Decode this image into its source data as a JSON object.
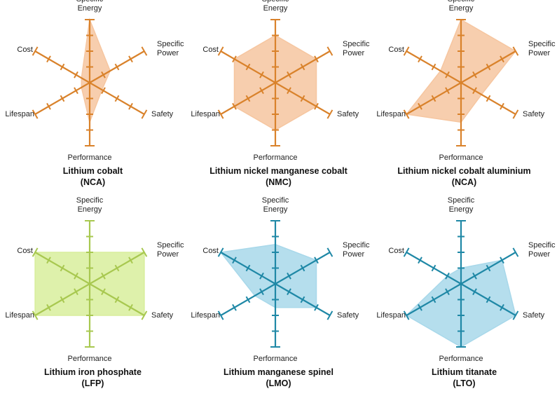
{
  "axes": [
    {
      "key": "energy",
      "label_lines": [
        "Specific",
        "Energy"
      ]
    },
    {
      "key": "power",
      "label_lines": [
        "Specific",
        "Power"
      ]
    },
    {
      "key": "safety",
      "label_lines": [
        "Safety"
      ]
    },
    {
      "key": "performance",
      "label_lines": [
        "Performance"
      ]
    },
    {
      "key": "lifespan",
      "label_lines": [
        "Lifespan"
      ]
    },
    {
      "key": "cost",
      "label_lines": [
        "Cost"
      ]
    }
  ],
  "chart_data": [
    {
      "type": "radar",
      "name_line1": "Lithium cobalt",
      "name_line2": "(NCA)",
      "axis_color": "#d9822b",
      "fill_color": "#f6c6a0",
      "scale_max": 4,
      "values": {
        "energy": 4,
        "power": 1.5,
        "safety": 0.9,
        "performance": 2.5,
        "lifespan": 0.6,
        "cost": 0.6
      }
    },
    {
      "type": "radar",
      "name_line1": "Lithium nickel manganese cobalt",
      "name_line2": "(NMC)",
      "axis_color": "#d9822b",
      "fill_color": "#f6c6a0",
      "scale_max": 4,
      "values": {
        "energy": 3,
        "power": 3,
        "safety": 3,
        "performance": 3,
        "lifespan": 3,
        "cost": 3
      }
    },
    {
      "type": "radar",
      "name_line1": "Lithium nickel cobalt aluminium",
      "name_line2": "(NCA)",
      "axis_color": "#d9822b",
      "fill_color": "#f6c6a0",
      "scale_max": 4,
      "values": {
        "energy": 4,
        "power": 4,
        "safety": 1.5,
        "performance": 2.5,
        "lifespan": 4,
        "cost": 1.5
      }
    },
    {
      "type": "radar",
      "name_line1": "Lithium iron phosphate",
      "name_line2": "(LFP)",
      "axis_color": "#a8c850",
      "fill_color": "#d8ee9c",
      "scale_max": 4,
      "values": {
        "energy": 2,
        "power": 4,
        "safety": 4,
        "performance": 2,
        "lifespan": 4,
        "cost": 4
      }
    },
    {
      "type": "radar",
      "name_line1": "Lithium manganese spinel",
      "name_line2": "(LMO)",
      "axis_color": "#1f88a6",
      "fill_color": "#a8d8ea",
      "scale_max": 4,
      "values": {
        "energy": 2.5,
        "power": 3,
        "safety": 3,
        "performance": 1.5,
        "lifespan": 1.5,
        "cost": 4
      }
    },
    {
      "type": "radar",
      "name_line1": "Lithium titanate",
      "name_line2": "(LTO)",
      "axis_color": "#1f88a6",
      "fill_color": "#a8d8ea",
      "scale_max": 4,
      "values": {
        "energy": 1,
        "power": 3,
        "safety": 4,
        "performance": 4,
        "lifespan": 4,
        "cost": 1
      }
    }
  ]
}
